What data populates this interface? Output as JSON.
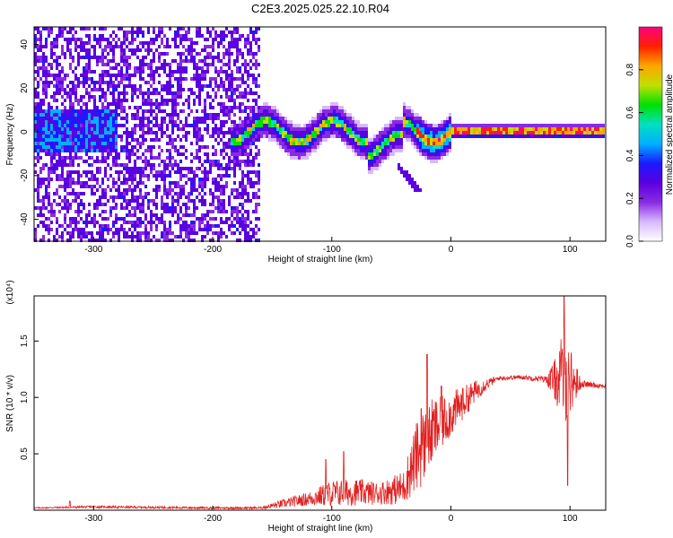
{
  "title": "C2E3.2025.025.22.10.R04",
  "colors": {
    "snr_line": "#e02020",
    "colormap": [
      "#ffffff",
      "#d8b8ff",
      "#8a2be2",
      "#5b00e0",
      "#1a1aff",
      "#00b0ff",
      "#00e0c0",
      "#00e000",
      "#c0e000",
      "#ffa500",
      "#ff2000",
      "#ff0080"
    ]
  },
  "chart_data": [
    {
      "type": "heatmap",
      "name": "spectrogram",
      "xlabel": "Height of straight line (km)",
      "ylabel": "Frequency (Hz)",
      "xlim": [
        -350,
        130
      ],
      "ylim": [
        -50,
        48
      ],
      "xticks": [
        -300,
        -200,
        -100,
        0,
        100
      ],
      "yticks": [
        -40,
        -20,
        0,
        20,
        40
      ],
      "colorbar": {
        "label": "Normalized spectral amplitude",
        "range": [
          0,
          1
        ],
        "ticks": [
          "0.0",
          "0.2",
          "0.4",
          "0.6",
          "0.8"
        ]
      },
      "features": [
        {
          "region": "broadband noise",
          "x_range": [
            -350,
            -160
          ],
          "y_range": [
            -50,
            48
          ],
          "level": 0.25
        },
        {
          "region": "low-frequency band near 0 Hz",
          "x_range": [
            -350,
            -280
          ],
          "y_range": [
            -10,
            10
          ],
          "level": 0.35
        },
        {
          "region": "tone near 0 Hz",
          "x_range": [
            -185,
            130
          ],
          "center_freq": 0,
          "level": 0.9
        },
        {
          "region": "descending branch",
          "x_range": [
            -45,
            -25
          ],
          "y_range": [
            -28,
            -15
          ],
          "level": 0.3
        }
      ]
    },
    {
      "type": "line",
      "name": "snr",
      "xlabel": "Height of straight line (km)",
      "ylabel": "SNR (10 * v/v)",
      "y_multiplier": "(x10⁴)",
      "xlim": [
        -350,
        130
      ],
      "ylim": [
        0,
        1.9
      ],
      "xticks": [
        -300,
        -200,
        -100,
        0,
        100
      ],
      "yticks": [
        0.5,
        1.0,
        1.5
      ],
      "envelope": {
        "x": [
          -350,
          -300,
          -200,
          -160,
          -140,
          -120,
          -100,
          -80,
          -60,
          -40,
          -30,
          -25,
          -20,
          -15,
          -10,
          0,
          10,
          20,
          30,
          40,
          60,
          80,
          90,
          95,
          100,
          110,
          130
        ],
        "y": [
          0.02,
          0.03,
          0.02,
          0.02,
          0.06,
          0.1,
          0.15,
          0.16,
          0.15,
          0.2,
          0.45,
          0.55,
          0.6,
          0.7,
          0.75,
          0.85,
          0.95,
          1.05,
          1.12,
          1.17,
          1.18,
          1.16,
          1.15,
          1.2,
          1.15,
          1.12,
          1.1
        ],
        "noise": [
          0.005,
          0.01,
          0.01,
          0.01,
          0.04,
          0.06,
          0.12,
          0.12,
          0.1,
          0.15,
          0.3,
          0.35,
          0.3,
          0.3,
          0.25,
          0.2,
          0.15,
          0.1,
          0.05,
          0.02,
          0.02,
          0.03,
          0.25,
          0.45,
          0.3,
          0.03,
          0.02
        ]
      },
      "spikes": [
        [
          -320,
          0.08
        ],
        [
          -105,
          0.45
        ],
        [
          -90,
          0.52
        ],
        [
          -25,
          0.9
        ],
        [
          -20,
          1.38
        ],
        [
          -8,
          1.1
        ],
        [
          10,
          1.08
        ],
        [
          95,
          1.9
        ],
        [
          98,
          0.22
        ]
      ]
    }
  ]
}
